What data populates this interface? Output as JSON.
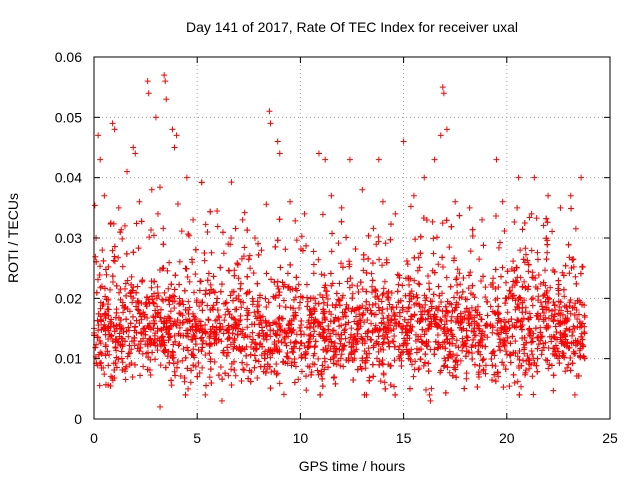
{
  "chart_data": {
    "type": "scatter",
    "title": "Day 141 of 2017, Rate Of TEC Index for receiver uxal",
    "xlabel": "GPS time / hours",
    "ylabel": "ROTI / TECUs",
    "xlim": [
      0,
      25
    ],
    "ylim": [
      0,
      0.06
    ],
    "x_ticks": [
      0,
      5,
      10,
      15,
      20,
      25
    ],
    "x_tick_labels": [
      "0",
      "5",
      "10",
      "15",
      "20",
      "25"
    ],
    "y_ticks": [
      0,
      0.01,
      0.02,
      0.03,
      0.04,
      0.05,
      0.06
    ],
    "y_tick_labels": [
      "0",
      "0.01",
      "0.02",
      "0.03",
      "0.04",
      "0.05",
      "0.06"
    ],
    "grid": true,
    "marker": "+",
    "color": "#ff0000",
    "data_extent_hours": [
      0,
      23.8
    ],
    "series": [
      {
        "name": "ROTI",
        "points": [
          [
            0.2,
            0.047
          ],
          [
            0.3,
            0.043
          ],
          [
            0.5,
            0.037
          ],
          [
            0.9,
            0.049
          ],
          [
            1.0,
            0.048
          ],
          [
            1.6,
            0.041
          ],
          [
            1.9,
            0.045
          ],
          [
            2.0,
            0.044
          ],
          [
            2.6,
            0.056
          ],
          [
            2.65,
            0.054
          ],
          [
            3.0,
            0.05
          ],
          [
            3.4,
            0.057
          ],
          [
            3.45,
            0.056
          ],
          [
            3.5,
            0.053
          ],
          [
            3.8,
            0.048
          ],
          [
            3.9,
            0.045
          ],
          [
            4.0,
            0.047
          ],
          [
            4.5,
            0.04
          ],
          [
            8.5,
            0.051
          ],
          [
            8.55,
            0.049
          ],
          [
            8.9,
            0.046
          ],
          [
            9.0,
            0.044
          ],
          [
            10.9,
            0.044
          ],
          [
            11.2,
            0.043
          ],
          [
            12.4,
            0.043
          ],
          [
            13.8,
            0.043
          ],
          [
            15.0,
            0.046
          ],
          [
            16.5,
            0.043
          ],
          [
            16.8,
            0.047
          ],
          [
            16.9,
            0.055
          ],
          [
            16.95,
            0.054
          ],
          [
            17.1,
            0.048
          ],
          [
            19.5,
            0.043
          ],
          [
            23.6,
            0.04
          ],
          [
            3.2,
            0.002
          ],
          [
            6.2,
            0.003
          ],
          [
            16.3,
            0.003
          ],
          [
            23.3,
            0.004
          ],
          [
            13.2,
            0.004
          ],
          [
            0.1,
            0.03
          ],
          [
            0.4,
            0.028
          ],
          [
            1.2,
            0.035
          ],
          [
            1.5,
            0.032
          ],
          [
            2.2,
            0.036
          ],
          [
            2.8,
            0.038
          ],
          [
            3.1,
            0.034
          ],
          [
            4.8,
            0.033
          ],
          [
            5.5,
            0.031
          ],
          [
            6.5,
            0.029
          ],
          [
            7.2,
            0.033
          ],
          [
            7.8,
            0.03
          ],
          [
            9.5,
            0.036
          ],
          [
            10.2,
            0.034
          ],
          [
            11.5,
            0.037
          ],
          [
            12.0,
            0.035
          ],
          [
            13.0,
            0.038
          ],
          [
            14.0,
            0.036
          ],
          [
            14.6,
            0.034
          ],
          [
            15.5,
            0.037
          ],
          [
            16.0,
            0.04
          ],
          [
            17.5,
            0.036
          ],
          [
            18.2,
            0.035
          ],
          [
            18.8,
            0.033
          ],
          [
            19.8,
            0.036
          ],
          [
            20.5,
            0.035
          ],
          [
            21.2,
            0.034
          ],
          [
            22.0,
            0.037
          ],
          [
            22.6,
            0.035
          ],
          [
            23.1,
            0.037
          ]
        ]
      }
    ]
  }
}
